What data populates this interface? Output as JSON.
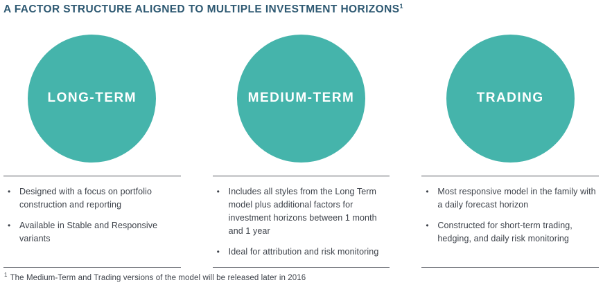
{
  "title": {
    "text": "A FACTOR STRUCTURE ALIGNED TO MULTIPLE INVESTMENT HORIZONS",
    "superscript": "1"
  },
  "colors": {
    "circle_teal": "#45b4ab",
    "title_navy": "#2e5972",
    "body_text": "#3d424a",
    "rule": "#4e525a"
  },
  "columns": [
    {
      "circle_label": "LONG-TERM",
      "bullets": [
        "Designed with a focus on portfolio construction and reporting",
        "Available in Stable and Responsive variants"
      ]
    },
    {
      "circle_label": "MEDIUM-TERM",
      "bullets": [
        "Includes all styles from the Long Term model plus additional factors for investment horizons between 1 month and 1 year",
        "Ideal for attribution and risk monitoring"
      ]
    },
    {
      "circle_label": "TRADING",
      "bullets": [
        "Most responsive model in the family with a daily forecast horizon",
        "Constructed for short-term trading, hedging, and daily risk monitoring"
      ]
    }
  ],
  "bullet_glyph": "•",
  "footnote": {
    "marker": "1",
    "text": "The Medium-Term and Trading versions of the model will be released later in 2016"
  }
}
